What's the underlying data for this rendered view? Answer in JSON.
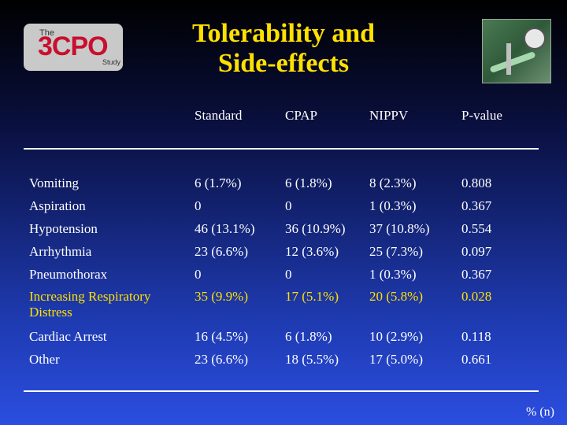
{
  "logo": {
    "the": "The",
    "name": "3CPO",
    "study": "Study"
  },
  "title": {
    "line1": "Tolerability and",
    "line2": "Side-effects"
  },
  "columns": [
    "Standard",
    "CPAP",
    "NIPPV",
    "P-value"
  ],
  "rows": [
    {
      "label": "Vomiting",
      "standard": "6 (1.7%)",
      "cpap": "6 (1.8%)",
      "nippv": "8 (2.3%)",
      "p": "0.808"
    },
    {
      "label": "Aspiration",
      "standard": "0",
      "cpap": "0",
      "nippv": "1 (0.3%)",
      "p": "0.367"
    },
    {
      "label": "Hypotension",
      "standard": "46 (13.1%)",
      "cpap": "36 (10.9%)",
      "nippv": "37 (10.8%)",
      "p": "0.554"
    },
    {
      "label": "Arrhythmia",
      "standard": "23 (6.6%)",
      "cpap": "12 (3.6%)",
      "nippv": "25 (7.3%)",
      "p": "0.097"
    },
    {
      "label": "Pneumothorax",
      "standard": "0",
      "cpap": "0",
      "nippv": "1 (0.3%)",
      "p": "0.367"
    },
    {
      "label": "Increasing Respiratory Distress",
      "standard": "35 (9.9%)",
      "cpap": "17 (5.1%)",
      "nippv": "20 (5.8%)",
      "p": "0.028"
    },
    {
      "label": "Cardiac Arrest",
      "standard": "16 (4.5%)",
      "cpap": "6 (1.8%)",
      "nippv": "10 (2.9%)",
      "p": "0.118"
    },
    {
      "label": "Other",
      "standard": "23 (6.6%)",
      "cpap": "18 (5.5%)",
      "nippv": "17 (5.0%)",
      "p": "0.661"
    }
  ],
  "footnote": "% (n)",
  "colors": {
    "title": "#ffe100",
    "highlight": "#ffe100",
    "text": "#ffffff"
  }
}
